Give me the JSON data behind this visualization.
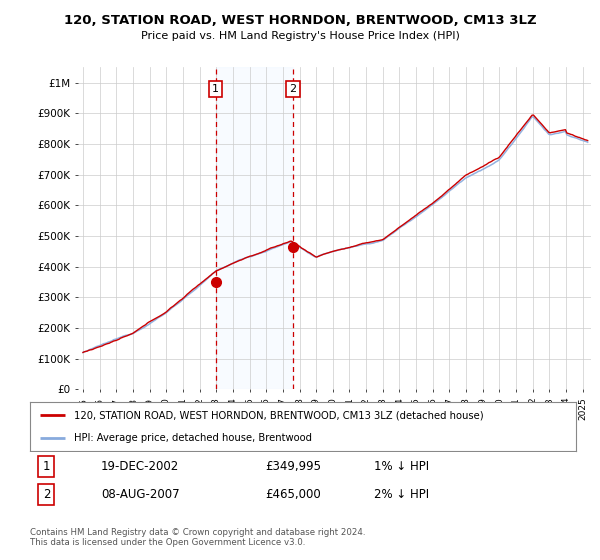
{
  "title": "120, STATION ROAD, WEST HORNDON, BRENTWOOD, CM13 3LZ",
  "subtitle": "Price paid vs. HM Land Registry's House Price Index (HPI)",
  "ylabel_ticks": [
    "£0",
    "£100K",
    "£200K",
    "£300K",
    "£400K",
    "£500K",
    "£600K",
    "£700K",
    "£800K",
    "£900K",
    "£1M"
  ],
  "ytick_vals": [
    0,
    100000,
    200000,
    300000,
    400000,
    500000,
    600000,
    700000,
    800000,
    900000,
    1000000
  ],
  "ylim": [
    0,
    1050000
  ],
  "xlim_start": 1994.7,
  "xlim_end": 2025.5,
  "sale1_date": 2002.97,
  "sale1_price": 349995,
  "sale2_date": 2007.6,
  "sale2_price": 465000,
  "legend_line1": "120, STATION ROAD, WEST HORNDON, BRENTWOOD, CM13 3LZ (detached house)",
  "legend_line2": "HPI: Average price, detached house, Brentwood",
  "table_row1_num": "1",
  "table_row1_date": "19-DEC-2002",
  "table_row1_price": "£349,995",
  "table_row1_hpi": "1% ↓ HPI",
  "table_row2_num": "2",
  "table_row2_date": "08-AUG-2007",
  "table_row2_price": "£465,000",
  "table_row2_hpi": "2% ↓ HPI",
  "footnote": "Contains HM Land Registry data © Crown copyright and database right 2024.\nThis data is licensed under the Open Government Licence v3.0.",
  "hpi_color": "#88aadd",
  "sale_color": "#cc0000",
  "bg_color": "#ddeeff",
  "plot_bg": "#ffffff",
  "grid_color": "#cccccc"
}
